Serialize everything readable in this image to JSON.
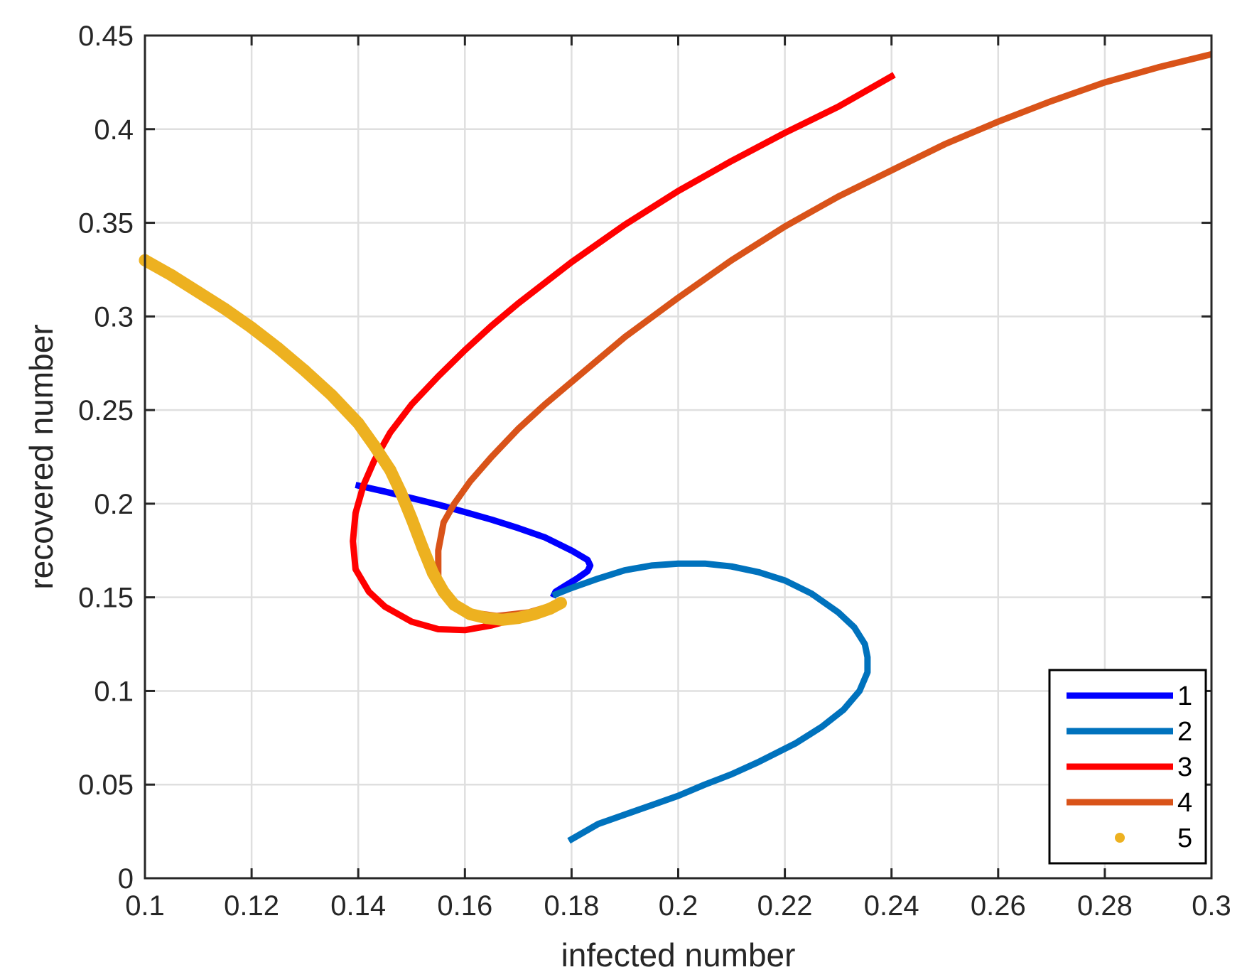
{
  "chart_data": {
    "type": "line",
    "title": "",
    "xlabel": "infected number",
    "ylabel": "recovered number",
    "xlim": [
      0.1,
      0.3
    ],
    "ylim": [
      0,
      0.45
    ],
    "xticks": [
      0.1,
      0.12,
      0.14,
      0.16,
      0.18,
      0.2,
      0.22,
      0.24,
      0.26,
      0.28,
      0.3
    ],
    "xtick_labels": [
      "0.1",
      "0.12",
      "0.14",
      "0.16",
      "0.18",
      "0.2",
      "0.22",
      "0.24",
      "0.26",
      "0.28",
      "0.3"
    ],
    "yticks": [
      0,
      0.05,
      0.1,
      0.15,
      0.2,
      0.25,
      0.3,
      0.35,
      0.4,
      0.45
    ],
    "ytick_labels": [
      "0",
      "0.05",
      "0.1",
      "0.15",
      "0.2",
      "0.25",
      "0.3",
      "0.35",
      "0.4",
      "0.45"
    ],
    "grid": true,
    "legend_position": "bottom-right",
    "series": [
      {
        "name": "1",
        "color": "#0000ff",
        "style": "line",
        "x": [
          0.1395,
          0.145,
          0.15,
          0.155,
          0.16,
          0.165,
          0.17,
          0.175,
          0.18,
          0.183,
          0.1835,
          0.183,
          0.181,
          0.179,
          0.177,
          0.1765
        ],
        "y": [
          0.21,
          0.2065,
          0.203,
          0.1995,
          0.1955,
          0.1915,
          0.187,
          0.182,
          0.175,
          0.17,
          0.167,
          0.164,
          0.16,
          0.1565,
          0.153,
          0.15
        ]
      },
      {
        "name": "2",
        "color": "#0072bd",
        "style": "line",
        "x": [
          0.1765,
          0.18,
          0.185,
          0.19,
          0.195,
          0.2,
          0.205,
          0.21,
          0.215,
          0.22,
          0.225,
          0.23,
          0.233,
          0.235,
          0.2355,
          0.2355,
          0.234,
          0.231,
          0.227,
          0.222,
          0.215,
          0.21,
          0.205,
          0.2,
          0.195,
          0.19,
          0.185,
          0.1795
        ],
        "y": [
          0.151,
          0.155,
          0.16,
          0.1645,
          0.167,
          0.168,
          0.168,
          0.1665,
          0.1635,
          0.159,
          0.152,
          0.142,
          0.134,
          0.125,
          0.118,
          0.11,
          0.1,
          0.09,
          0.081,
          0.072,
          0.062,
          0.0555,
          0.05,
          0.044,
          0.039,
          0.034,
          0.029,
          0.02
        ]
      },
      {
        "name": "3",
        "color": "#ff0000",
        "style": "line",
        "x": [
          0.178,
          0.175,
          0.17,
          0.165,
          0.16,
          0.155,
          0.15,
          0.145,
          0.142,
          0.1395,
          0.139,
          0.1395,
          0.141,
          0.143,
          0.146,
          0.15,
          0.155,
          0.16,
          0.165,
          0.17,
          0.175,
          0.18,
          0.19,
          0.2,
          0.21,
          0.22,
          0.23,
          0.2405
        ],
        "y": [
          0.147,
          0.144,
          0.139,
          0.135,
          0.1325,
          0.133,
          0.137,
          0.145,
          0.153,
          0.165,
          0.18,
          0.195,
          0.21,
          0.223,
          0.238,
          0.253,
          0.268,
          0.282,
          0.295,
          0.307,
          0.318,
          0.329,
          0.349,
          0.367,
          0.383,
          0.398,
          0.412,
          0.429
        ]
      },
      {
        "name": "4",
        "color": "#d95319",
        "style": "line",
        "x": [
          0.178,
          0.172,
          0.166,
          0.161,
          0.158,
          0.156,
          0.155,
          0.155,
          0.156,
          0.158,
          0.161,
          0.165,
          0.17,
          0.175,
          0.18,
          0.19,
          0.2,
          0.21,
          0.22,
          0.23,
          0.24,
          0.25,
          0.26,
          0.27,
          0.28,
          0.29,
          0.3
        ],
        "y": [
          0.147,
          0.142,
          0.14,
          0.142,
          0.146,
          0.152,
          0.16,
          0.175,
          0.19,
          0.2,
          0.212,
          0.225,
          0.24,
          0.253,
          0.265,
          0.289,
          0.31,
          0.33,
          0.348,
          0.364,
          0.378,
          0.392,
          0.404,
          0.415,
          0.425,
          0.433,
          0.44
        ]
      },
      {
        "name": "5",
        "color": "#edb120",
        "style": "dots",
        "x": [
          0.1,
          0.105,
          0.11,
          0.115,
          0.12,
          0.125,
          0.13,
          0.135,
          0.14,
          0.143,
          0.146,
          0.148,
          0.15,
          0.152,
          0.154,
          0.156,
          0.158,
          0.161,
          0.164,
          0.167,
          0.17,
          0.173,
          0.176,
          0.178
        ],
        "y": [
          0.33,
          0.322,
          0.313,
          0.304,
          0.294,
          0.283,
          0.271,
          0.258,
          0.243,
          0.231,
          0.218,
          0.206,
          0.192,
          0.177,
          0.163,
          0.153,
          0.146,
          0.141,
          0.139,
          0.138,
          0.139,
          0.141,
          0.144,
          0.147
        ]
      }
    ]
  }
}
